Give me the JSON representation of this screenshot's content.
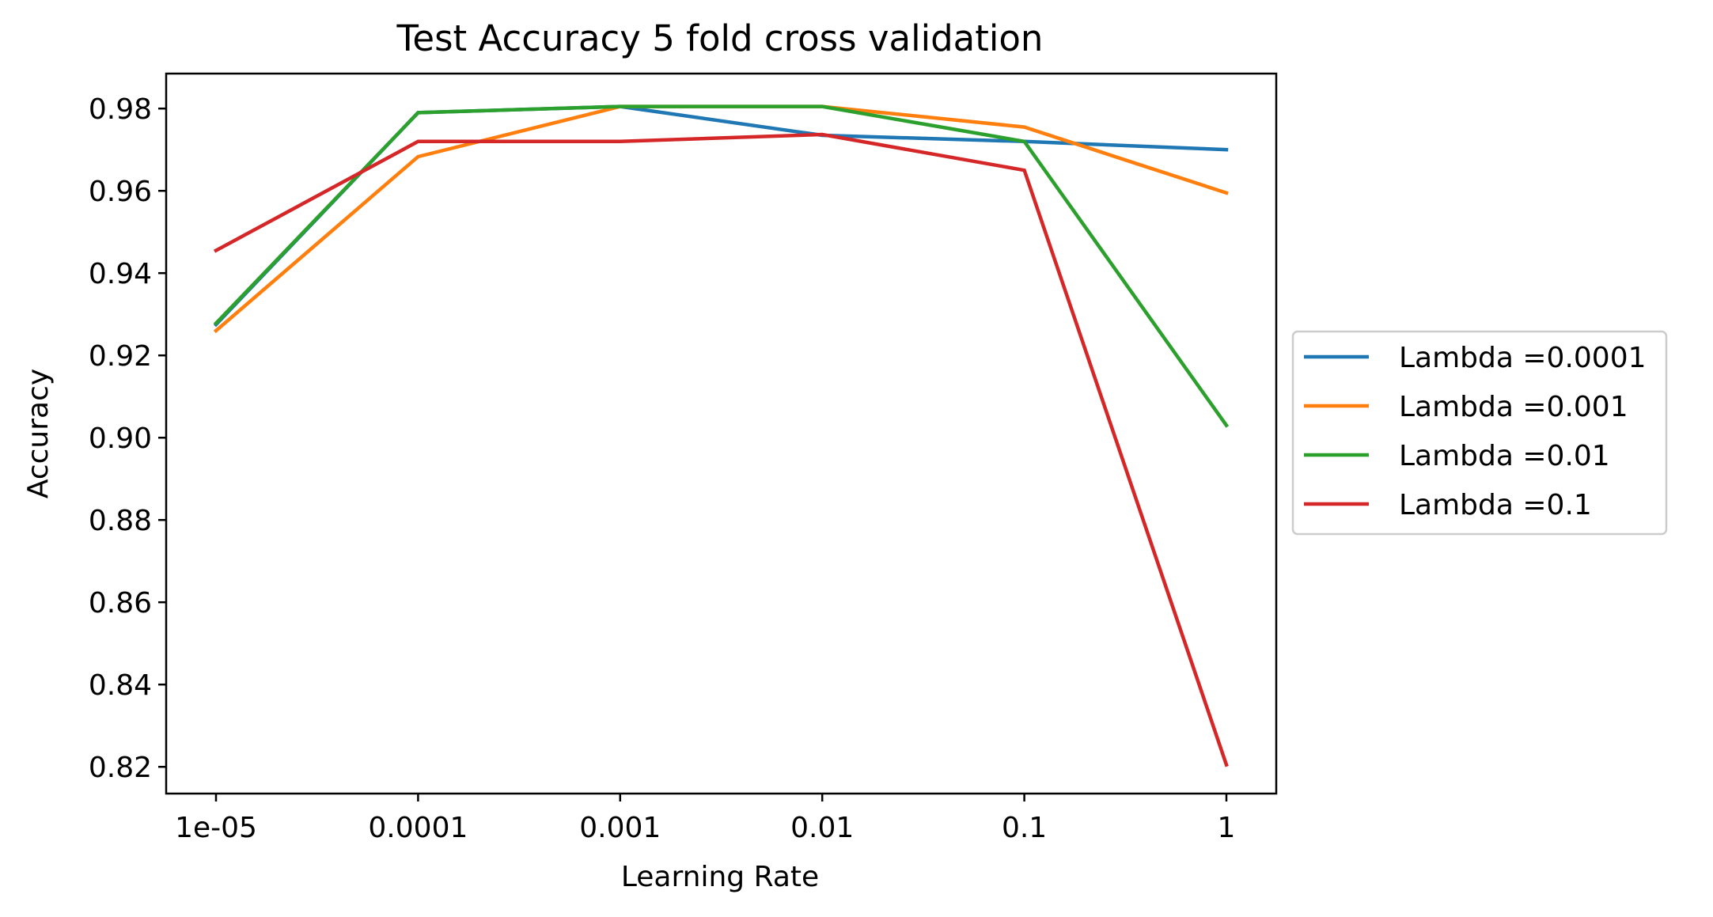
{
  "chart_data": {
    "type": "line",
    "title": "Test Accuracy 5 fold cross validation",
    "xlabel": "Learning Rate",
    "ylabel": "Accuracy",
    "categories": [
      "1e-05",
      "0.0001",
      "0.001",
      "0.01",
      "0.1",
      "1"
    ],
    "y_ticks": [
      "0.82",
      "0.84",
      "0.86",
      "0.88",
      "0.90",
      "0.92",
      "0.94",
      "0.96",
      "0.98"
    ],
    "y_tick_values": [
      0.82,
      0.84,
      0.86,
      0.88,
      0.9,
      0.92,
      0.94,
      0.96,
      0.98
    ],
    "ylim": [
      0.8135,
      0.9885
    ],
    "grid": false,
    "legend_position": "center-right-outside",
    "series": [
      {
        "name": "Lambda =0.0001",
        "color": "#1f77b4",
        "values": [
          0.9275,
          0.979,
          0.9805,
          0.9735,
          0.972,
          0.97
        ]
      },
      {
        "name": "Lambda =0.001",
        "color": "#ff7f0e",
        "values": [
          0.926,
          0.9683,
          0.9805,
          0.9805,
          0.9755,
          0.9595
        ]
      },
      {
        "name": "Lambda =0.01",
        "color": "#2ca02c",
        "values": [
          0.9278,
          0.979,
          0.9805,
          0.9805,
          0.972,
          0.903
        ]
      },
      {
        "name": "Lambda =0.1",
        "color": "#d62728",
        "values": [
          0.9455,
          0.972,
          0.972,
          0.9737,
          0.965,
          0.8205
        ]
      }
    ]
  }
}
